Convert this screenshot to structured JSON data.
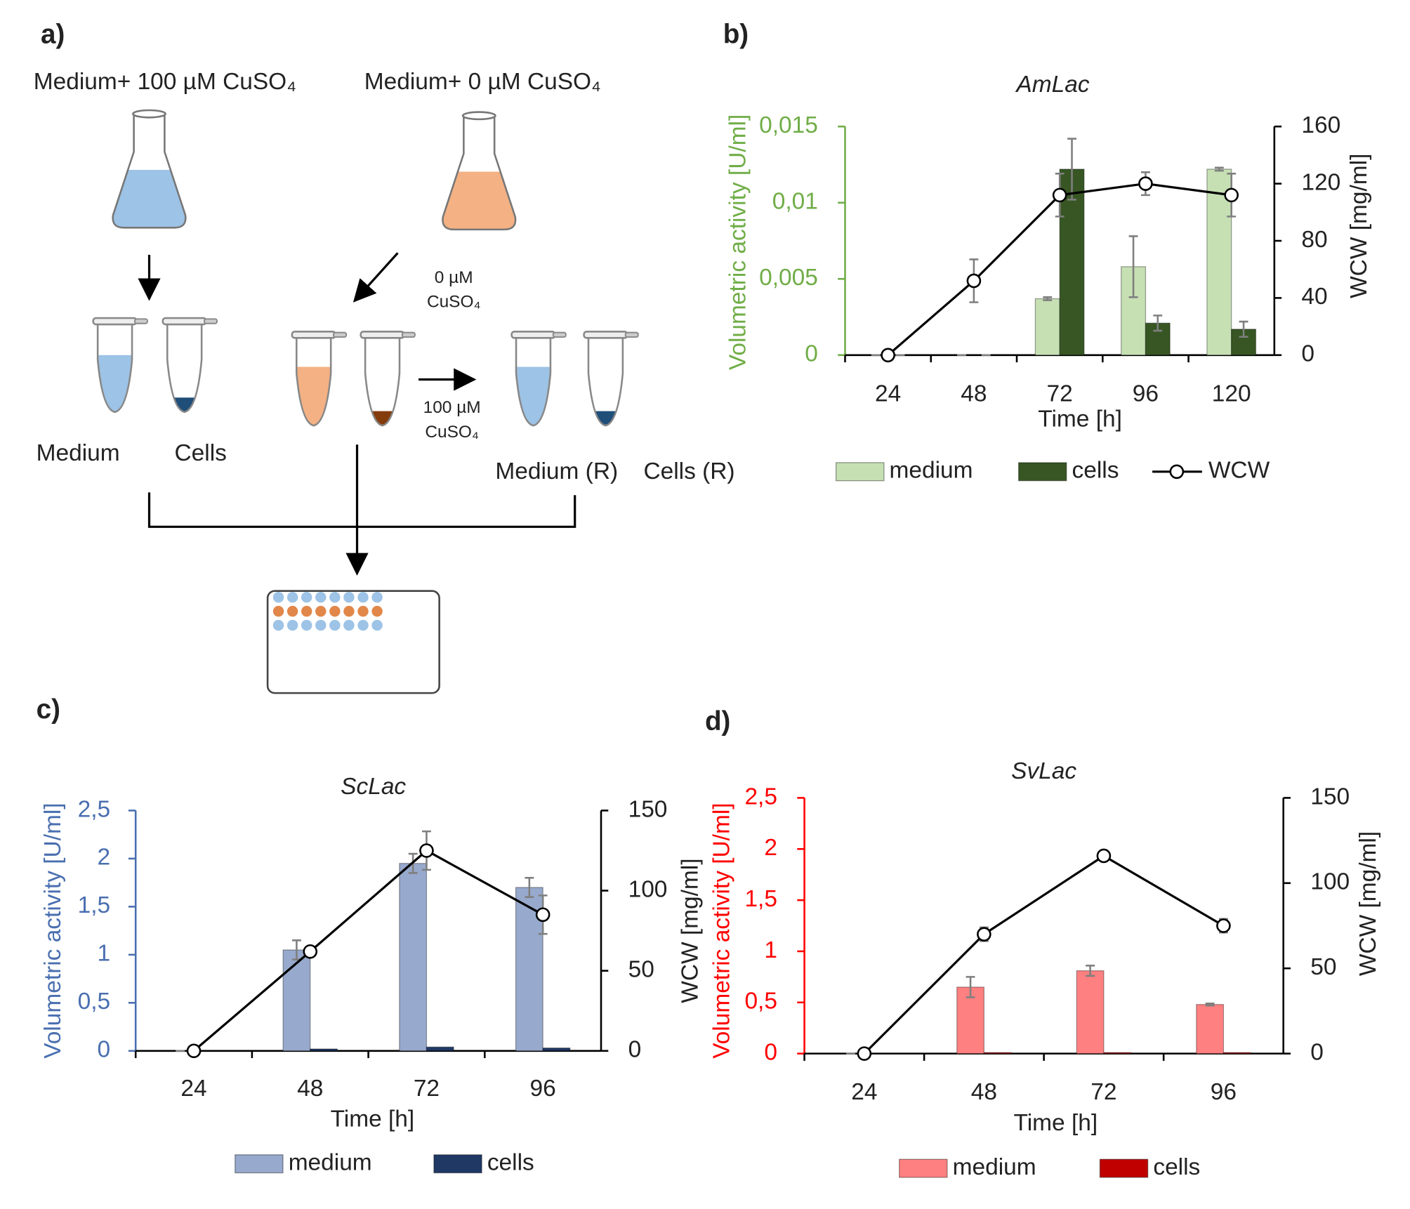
{
  "diagram": {
    "label": "a)",
    "flask_left": "Medium+ 100 µM CuSO₄",
    "flask_right": "Medium+ 0 µM CuSO₄",
    "arrow_top": [
      "0 µM",
      "CuSO₄"
    ],
    "arrow_right": [
      "100 µM",
      "CuSO₄"
    ],
    "medium": "Medium",
    "cells": "Cells",
    "medium_r": "Medium (R)",
    "cells_r": "Cells (R)"
  },
  "chart_data": [
    {
      "panel": "b)",
      "type": "bar",
      "title": "AmLac",
      "categories": [
        "24",
        "48",
        "72",
        "96",
        "120"
      ],
      "xlabel": "Time [h]",
      "ylabel": "Volumetric activity [U/ml]",
      "y2label": "WCW [mg/ml]",
      "y_axis_color": "#70ad47",
      "ylim": [
        0,
        0.015
      ],
      "yticks": [
        0,
        {
          "value": 0.005,
          "label": "0,005"
        },
        {
          "value": 0.01,
          "label": "0,01"
        },
        {
          "value": 0.015,
          "label": "0,015"
        }
      ],
      "y2lim": [
        0,
        160
      ],
      "y2ticks": [
        0,
        40,
        80,
        120,
        160
      ],
      "series": [
        {
          "name": "medium",
          "color": "#c6e0b4",
          "values": [
            0,
            0,
            0.0037,
            0.0058,
            0.0122
          ],
          "errors": [
            0,
            0,
            0.0001,
            0.002,
            0.0001
          ]
        },
        {
          "name": "cells",
          "color": "#375623",
          "values": [
            0,
            0,
            0.0122,
            0.0021,
            0.0017
          ],
          "errors": [
            0,
            0,
            0.002,
            0.0005,
            0.0005
          ]
        },
        {
          "name": "WCW",
          "type": "line",
          "axis": "y2",
          "color": "#000000",
          "values": [
            0,
            52,
            112,
            120,
            112
          ],
          "errors": [
            0,
            15,
            15,
            8,
            15
          ]
        }
      ]
    },
    {
      "panel": "c)",
      "type": "bar",
      "title": "ScLac",
      "categories": [
        "24",
        "48",
        "72",
        "96"
      ],
      "xlabel": "Time [h]",
      "ylabel": "Volumetric activity [U/ml]",
      "y2label": "WCW [mg/ml]",
      "y_axis_color": "#4a6fb0",
      "ylim": [
        0,
        2.5
      ],
      "yticks": [
        0,
        {
          "value": 0.5,
          "label": "0,5"
        },
        1,
        {
          "value": 1.5,
          "label": "1,5"
        },
        2,
        {
          "value": 2.5,
          "label": "2,5"
        }
      ],
      "y2lim": [
        0,
        150
      ],
      "y2ticks": [
        0,
        50,
        100,
        150
      ],
      "series": [
        {
          "name": "medium",
          "color": "#97a9cc",
          "values": [
            0,
            1.05,
            1.95,
            1.7
          ],
          "errors": [
            0,
            0.1,
            0.1,
            0.1
          ]
        },
        {
          "name": "cells",
          "color": "#203864",
          "values": [
            0,
            0.02,
            0.04,
            0.03
          ]
        },
        {
          "type": "line",
          "axis": "y2",
          "color": "#000000",
          "values": [
            0,
            62,
            125,
            85
          ],
          "errors": [
            0,
            3,
            12,
            12
          ]
        }
      ]
    },
    {
      "panel": "d)",
      "type": "bar",
      "title": "SvLac",
      "categories": [
        "24",
        "48",
        "72",
        "96"
      ],
      "xlabel": "Time [h]",
      "ylabel": "Volumetric activity [U/ml]",
      "y2label": "WCW [mg/ml]",
      "y_axis_color": "#ff0000",
      "ylim": [
        0,
        2.5
      ],
      "yticks": [
        0,
        {
          "value": 0.5,
          "label": "0,5"
        },
        1,
        {
          "value": 1.5,
          "label": "1,5"
        },
        2,
        {
          "value": 2.5,
          "label": "2,5"
        }
      ],
      "y2lim": [
        0,
        150
      ],
      "y2ticks": [
        0,
        50,
        100,
        150
      ],
      "series": [
        {
          "name": "medium",
          "color": "#ff8080",
          "values": [
            0,
            0.65,
            0.81,
            0.48
          ],
          "errors": [
            0,
            0.1,
            0.05,
            0.01
          ]
        },
        {
          "name": "cells",
          "color": "#c00000",
          "values": [
            0,
            0.01,
            0.01,
            0.01
          ]
        },
        {
          "type": "line",
          "axis": "y2",
          "color": "#000000",
          "values": [
            0,
            70,
            116,
            75
          ],
          "errors": [
            0,
            4,
            2,
            4
          ]
        }
      ]
    }
  ]
}
